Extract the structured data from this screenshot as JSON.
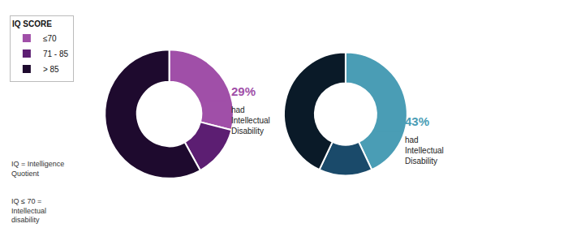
{
  "chart_data": [
    {
      "type": "pie",
      "categories": [
        "≤70",
        "71 - 85",
        "> 85"
      ],
      "values": [
        29,
        13,
        58
      ],
      "colors": [
        "#a04fa8",
        "#5c1e72",
        "#1e0a2e"
      ],
      "legend": "upper left",
      "legend_title": "IQ SCORE",
      "annotations": [
        "29%",
        "had\nIntellectual\nDisability",
        "IQ = Intelligence\nQuotient",
        "IQ ≤ 70 =\nIntellectual\ndisability"
      ]
    },
    {
      "type": "pie",
      "categories": [
        "≤70",
        "71 - 85",
        "> 85"
      ],
      "values": [
        43,
        14,
        43
      ],
      "colors": [
        "#4a9db5",
        "#1a4a6a",
        "#0a1a28"
      ],
      "legend": "upper right",
      "legend_title": "IQ SCORE",
      "annotations": [
        "43%",
        "had\nIntellectual\nDisability"
      ]
    }
  ]
}
